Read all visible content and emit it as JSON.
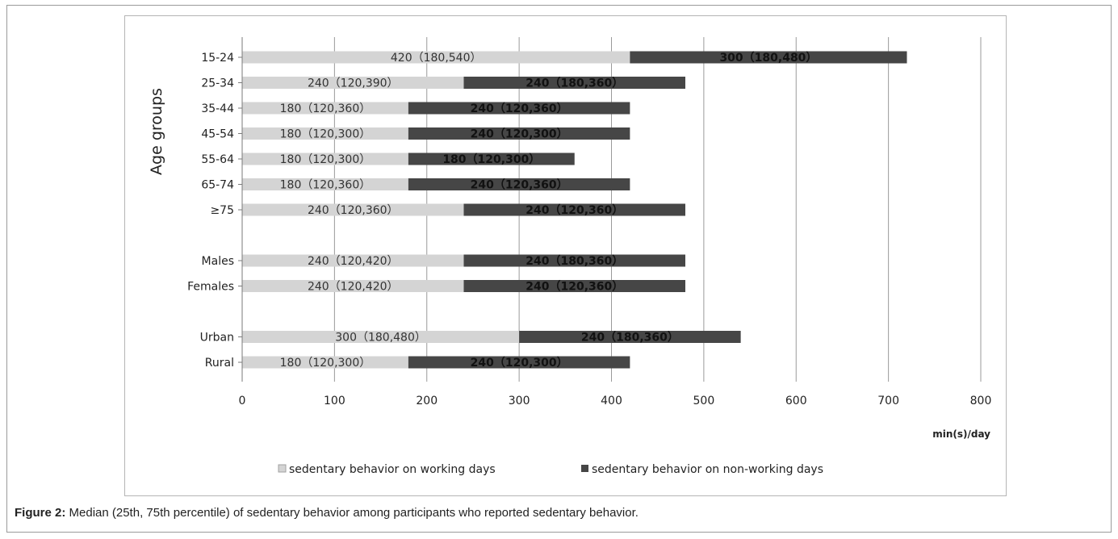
{
  "caption": {
    "label": "Figure 2:",
    "text": " Median (25th, 75th percentile) of sedentary behavior among participants who reported sedentary behavior."
  },
  "chart_data": {
    "type": "bar",
    "orientation": "horizontal",
    "stacked": true,
    "title": "",
    "ylabel": "Age  groups",
    "xlabel": "min(s)/day",
    "xlim": [
      0,
      800
    ],
    "xticks": [
      0,
      100,
      200,
      300,
      400,
      500,
      600,
      700,
      800
    ],
    "grid": "vertical",
    "legend_position": "bottom",
    "groups": [
      [
        "15-24",
        "25-34",
        "35-44",
        "45-54",
        "55-64",
        "65-74",
        "≥75"
      ],
      [
        "Males",
        "Females"
      ],
      [
        "Urban",
        "Rural"
      ]
    ],
    "categories": [
      "15-24",
      "25-34",
      "35-44",
      "45-54",
      "55-64",
      "65-74",
      "≥75",
      "Males",
      "Females",
      "Urban",
      "Rural"
    ],
    "series": [
      {
        "name": "sedentary behavior on working days",
        "color": "#d4d4d4",
        "values": [
          420,
          240,
          180,
          180,
          180,
          180,
          240,
          240,
          240,
          300,
          180
        ],
        "labels": [
          "420（180,540）",
          "240（120,390）",
          "180（120,360）",
          "180（120,300）",
          "180（120,300）",
          "180（120,360）",
          "240（120,360）",
          "240（120,420）",
          "240（120,420）",
          "300（180,480）",
          "180（120,300）"
        ]
      },
      {
        "name": "sedentary behavior on non-working days",
        "color": "#464646",
        "values": [
          300,
          240,
          240,
          240,
          180,
          240,
          240,
          240,
          240,
          240,
          240
        ],
        "labels": [
          "300（180,480）",
          "240（180,360）",
          "240（120,360）",
          "240（120,300）",
          "180（120,300）",
          "240（120,360）",
          "240（120,360）",
          "240（180,360）",
          "240（120,360）",
          "240（180,360）",
          "240（120,300）"
        ]
      }
    ]
  }
}
